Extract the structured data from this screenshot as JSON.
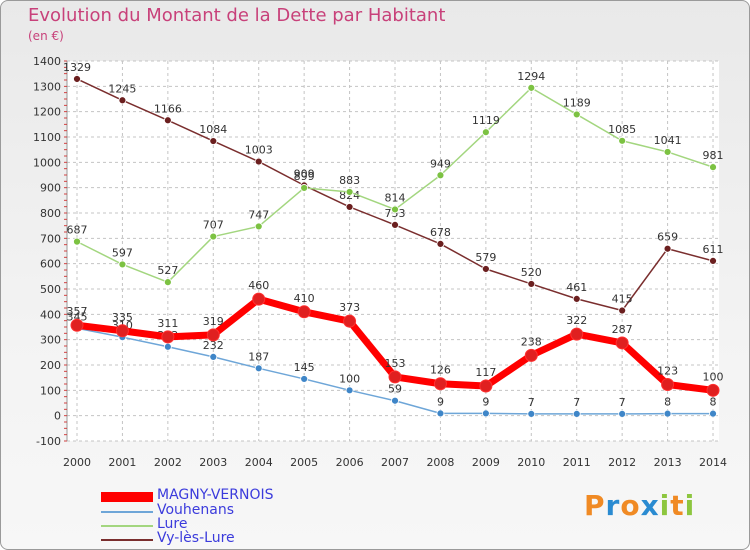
{
  "header": {
    "title": "Evolution du Montant de la Dette par Habitant",
    "subtitle": "(en €)"
  },
  "logo": {
    "letters": [
      "P",
      "r",
      "o",
      "x",
      "i",
      "t",
      "i"
    ],
    "colors": [
      "#f08a24",
      "#2a8bd1",
      "#f08a24",
      "#2a8bd1",
      "#8dc63f",
      "#f08a24",
      "#8dc63f"
    ]
  },
  "legend": [
    {
      "name": "MAGNY-VERNOIS",
      "color": "#ff0000"
    },
    {
      "name": "Vouhenans",
      "color": "#6ea6d8"
    },
    {
      "name": "Lure",
      "color": "#a3d67f"
    },
    {
      "name": "Vy-lès-Lure",
      "color": "#7a2e2e"
    }
  ],
  "chart_data": {
    "type": "line",
    "x": [
      "2000",
      "2001",
      "2002",
      "2003",
      "2004",
      "2005",
      "2006",
      "2007",
      "2008",
      "2009",
      "2010",
      "2011",
      "2012",
      "2013",
      "2014"
    ],
    "ylim": [
      -100,
      1400
    ],
    "yticks": [
      -100,
      0,
      100,
      200,
      300,
      400,
      500,
      600,
      700,
      800,
      900,
      1000,
      1100,
      1200,
      1300,
      1400
    ],
    "grid": true,
    "legend_position": "bottom-left",
    "series": [
      {
        "name": "MAGNY-VERNOIS",
        "color": "#ff0000",
        "marker": "#e02020",
        "values": [
          357,
          335,
          311,
          319,
          460,
          410,
          373,
          153,
          126,
          117,
          238,
          322,
          287,
          123,
          100
        ]
      },
      {
        "name": "Vouhenans",
        "color": "#6ea6d8",
        "marker": "#3f86c8",
        "values": [
          345,
          310,
          272,
          232,
          187,
          145,
          100,
          59,
          9,
          9,
          7,
          7,
          7,
          8,
          8
        ]
      },
      {
        "name": "Lure",
        "color": "#a3d67f",
        "marker": "#7cc242",
        "values": [
          687,
          597,
          527,
          707,
          747,
          899,
          883,
          814,
          949,
          1119,
          1294,
          1189,
          1085,
          1041,
          981
        ]
      },
      {
        "name": "Vy-lès-Lure",
        "color": "#7a2e2e",
        "marker": "#6b1f1f",
        "values": [
          1329,
          1245,
          1166,
          1084,
          1003,
          909,
          824,
          753,
          678,
          579,
          520,
          461,
          415,
          659,
          611
        ]
      }
    ]
  }
}
